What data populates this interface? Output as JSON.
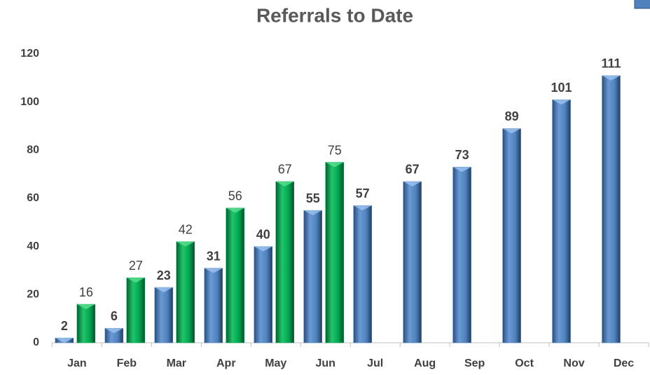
{
  "chart_data": {
    "type": "bar",
    "title": "Referrals to Date",
    "categories": [
      "Jan",
      "Feb",
      "Mar",
      "Apr",
      "May",
      "Jun",
      "Jul",
      "Aug",
      "Sep",
      "Oct",
      "Nov",
      "Dec"
    ],
    "series": [
      {
        "color": "#4f81bd",
        "values": [
          2,
          6,
          23,
          31,
          40,
          55,
          57,
          67,
          73,
          89,
          101,
          111
        ]
      },
      {
        "color": "#00a651",
        "values": [
          16,
          27,
          42,
          56,
          67,
          75,
          null,
          null,
          null,
          null,
          null,
          null
        ]
      }
    ],
    "ylim": [
      0,
      120
    ],
    "yticks": [
      0,
      20,
      40,
      60,
      80,
      100,
      120
    ],
    "grid": false
  }
}
